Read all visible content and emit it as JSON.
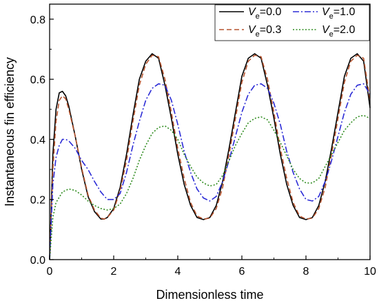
{
  "chart_data": {
    "type": "line",
    "xlabel": "Dimensionless time",
    "ylabel": "Instantaneous fin efficiency",
    "xlim": [
      0,
      10
    ],
    "ylim": [
      0,
      0.85
    ],
    "x_ticks": [
      "0",
      "2",
      "4",
      "6",
      "8",
      "10"
    ],
    "y_ticks": [
      "0.0",
      "0.2",
      "0.4",
      "0.6",
      "0.8"
    ],
    "grid": false,
    "legend_placement": "top-right",
    "series": [
      {
        "name": "Ve=0.0",
        "var": "V",
        "sub": "e",
        "value_text": "=0.0",
        "color": "#000000",
        "dash": "solid",
        "x": [
          0,
          0.1,
          0.2,
          0.3,
          0.4,
          0.5,
          0.6,
          0.8,
          1.0,
          1.2,
          1.4,
          1.6,
          1.7,
          1.8,
          2.0,
          2.2,
          2.4,
          2.6,
          2.8,
          3.0,
          3.2,
          3.4,
          3.6,
          3.8,
          4.0,
          4.2,
          4.4,
          4.6,
          4.8,
          5.0,
          5.2,
          5.4,
          5.6,
          5.8,
          6.0,
          6.2,
          6.4,
          6.6,
          6.8,
          7.0,
          7.2,
          7.4,
          7.6,
          7.8,
          8.0,
          8.2,
          8.4,
          8.6,
          8.8,
          9.0,
          9.2,
          9.4,
          9.6,
          9.8,
          10.0
        ],
        "y": [
          0.0,
          0.35,
          0.5,
          0.555,
          0.56,
          0.545,
          0.51,
          0.41,
          0.3,
          0.21,
          0.16,
          0.135,
          0.135,
          0.14,
          0.17,
          0.24,
          0.35,
          0.48,
          0.6,
          0.66,
          0.685,
          0.67,
          0.58,
          0.47,
          0.35,
          0.25,
          0.18,
          0.14,
          0.133,
          0.14,
          0.18,
          0.26,
          0.37,
          0.49,
          0.61,
          0.67,
          0.685,
          0.67,
          0.58,
          0.47,
          0.35,
          0.25,
          0.18,
          0.14,
          0.133,
          0.14,
          0.18,
          0.26,
          0.37,
          0.49,
          0.61,
          0.67,
          0.685,
          0.66,
          0.505
        ]
      },
      {
        "name": "Ve=0.3",
        "var": "V",
        "sub": "e",
        "value_text": "=0.3",
        "color": "#b5532e",
        "dash": "dashed",
        "x": [
          0,
          0.1,
          0.2,
          0.3,
          0.4,
          0.5,
          0.6,
          0.8,
          1.0,
          1.2,
          1.4,
          1.6,
          1.7,
          1.8,
          2.0,
          2.2,
          2.4,
          2.6,
          2.8,
          3.0,
          3.2,
          3.4,
          3.6,
          3.8,
          4.0,
          4.2,
          4.4,
          4.6,
          4.8,
          5.0,
          5.2,
          5.4,
          5.6,
          5.8,
          6.0,
          6.2,
          6.4,
          6.6,
          6.8,
          7.0,
          7.2,
          7.4,
          7.6,
          7.8,
          8.0,
          8.2,
          8.4,
          8.6,
          8.8,
          9.0,
          9.2,
          9.4,
          9.6,
          9.8,
          10.0
        ],
        "y": [
          0.0,
          0.3,
          0.46,
          0.53,
          0.545,
          0.535,
          0.5,
          0.41,
          0.305,
          0.215,
          0.165,
          0.138,
          0.135,
          0.14,
          0.165,
          0.23,
          0.33,
          0.46,
          0.58,
          0.65,
          0.68,
          0.675,
          0.6,
          0.49,
          0.37,
          0.27,
          0.19,
          0.145,
          0.135,
          0.138,
          0.17,
          0.24,
          0.35,
          0.47,
          0.59,
          0.66,
          0.68,
          0.675,
          0.6,
          0.49,
          0.37,
          0.27,
          0.19,
          0.145,
          0.135,
          0.138,
          0.17,
          0.24,
          0.35,
          0.47,
          0.59,
          0.66,
          0.68,
          0.67,
          0.53
        ]
      },
      {
        "name": "Ve=1.0",
        "var": "V",
        "sub": "e",
        "value_text": "=1.0",
        "color": "#2b2bd6",
        "dash": "dashdot",
        "x": [
          0,
          0.1,
          0.2,
          0.3,
          0.4,
          0.5,
          0.6,
          0.8,
          1.0,
          1.2,
          1.4,
          1.6,
          1.8,
          2.0,
          2.2,
          2.4,
          2.6,
          2.8,
          3.0,
          3.2,
          3.4,
          3.6,
          3.8,
          4.0,
          4.2,
          4.4,
          4.6,
          4.8,
          5.0,
          5.2,
          5.4,
          5.6,
          5.8,
          6.0,
          6.2,
          6.4,
          6.6,
          6.8,
          7.0,
          7.2,
          7.4,
          7.6,
          7.8,
          8.0,
          8.2,
          8.4,
          8.6,
          8.8,
          9.0,
          9.2,
          9.4,
          9.6,
          9.8,
          10.0
        ],
        "y": [
          0.0,
          0.25,
          0.34,
          0.38,
          0.4,
          0.4,
          0.395,
          0.37,
          0.33,
          0.3,
          0.26,
          0.225,
          0.2,
          0.2,
          0.22,
          0.29,
          0.38,
          0.46,
          0.53,
          0.57,
          0.585,
          0.58,
          0.53,
          0.45,
          0.36,
          0.29,
          0.235,
          0.205,
          0.195,
          0.21,
          0.26,
          0.33,
          0.41,
          0.49,
          0.55,
          0.58,
          0.585,
          0.57,
          0.52,
          0.45,
          0.36,
          0.29,
          0.235,
          0.2,
          0.195,
          0.21,
          0.26,
          0.33,
          0.41,
          0.49,
          0.55,
          0.58,
          0.585,
          0.55
        ]
      },
      {
        "name": "Ve=2.0",
        "var": "V",
        "sub": "e",
        "value_text": "=2.0",
        "color": "#2e8b1e",
        "dash": "dotted",
        "x": [
          0,
          0.1,
          0.2,
          0.4,
          0.6,
          0.8,
          1.0,
          1.2,
          1.4,
          1.6,
          1.8,
          2.0,
          2.2,
          2.4,
          2.6,
          2.8,
          3.0,
          3.2,
          3.4,
          3.6,
          3.8,
          4.0,
          4.2,
          4.4,
          4.6,
          4.8,
          5.0,
          5.2,
          5.4,
          5.6,
          5.8,
          6.0,
          6.2,
          6.4,
          6.6,
          6.8,
          7.0,
          7.2,
          7.4,
          7.6,
          7.8,
          8.0,
          8.2,
          8.4,
          8.6,
          8.8,
          9.0,
          9.2,
          9.4,
          9.6,
          9.8,
          10.0
        ],
        "y": [
          0.0,
          0.14,
          0.19,
          0.225,
          0.235,
          0.23,
          0.215,
          0.195,
          0.18,
          0.17,
          0.165,
          0.17,
          0.185,
          0.22,
          0.27,
          0.33,
          0.38,
          0.42,
          0.44,
          0.445,
          0.43,
          0.4,
          0.35,
          0.31,
          0.275,
          0.255,
          0.245,
          0.25,
          0.28,
          0.33,
          0.38,
          0.42,
          0.455,
          0.47,
          0.475,
          0.465,
          0.43,
          0.39,
          0.345,
          0.3,
          0.27,
          0.255,
          0.255,
          0.27,
          0.31,
          0.35,
          0.39,
          0.43,
          0.455,
          0.475,
          0.48,
          0.47
        ]
      }
    ]
  }
}
